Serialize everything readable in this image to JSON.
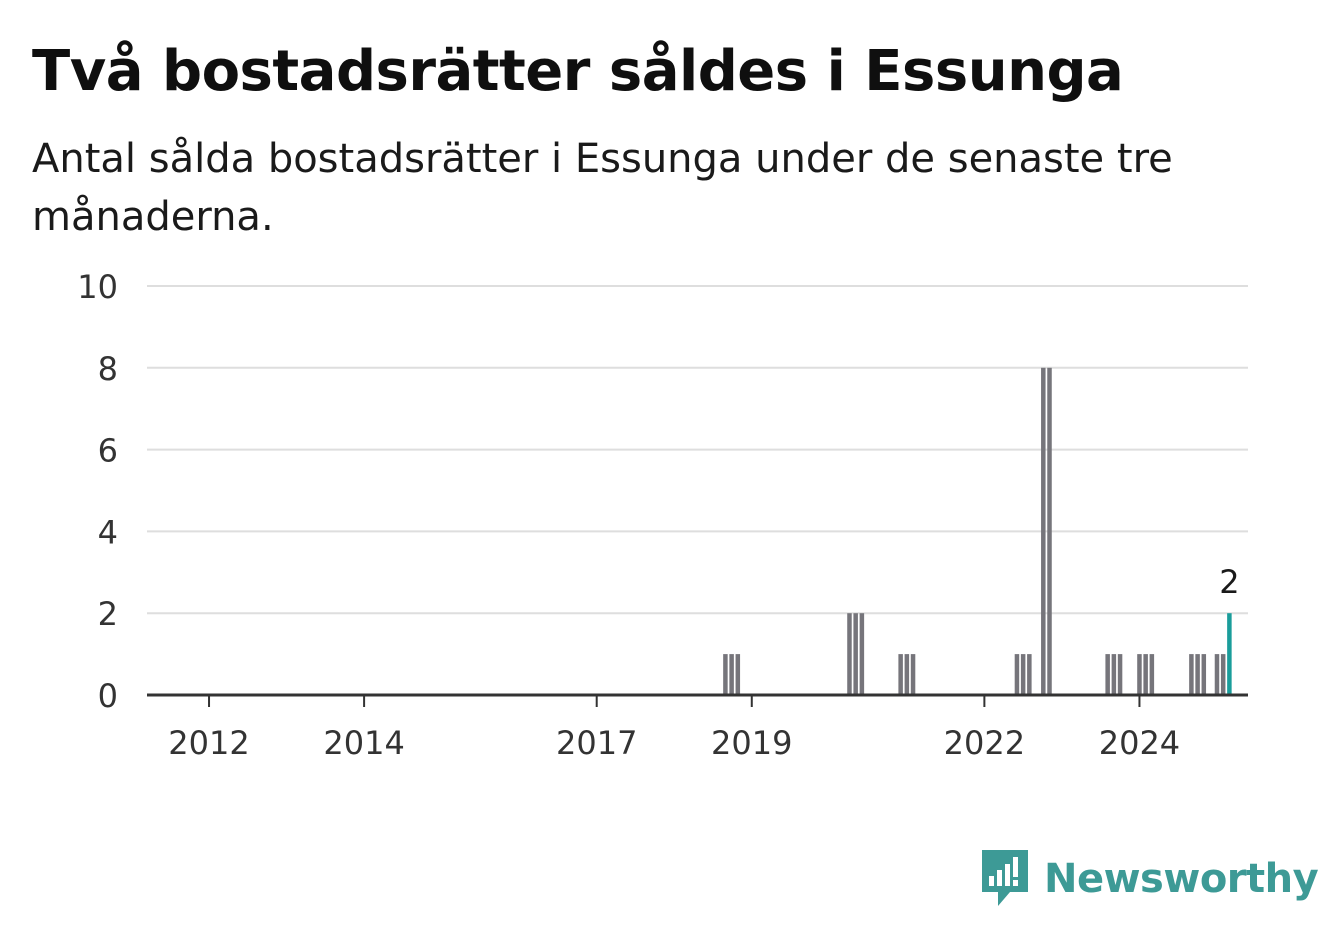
{
  "header": {
    "title": "Två bostadsrätter såldes i Essunga",
    "subtitle": "Antal sålda bostadsrätter i Essunga under de senaste tre månaderna."
  },
  "brand": {
    "name": "Newsworthy",
    "icon": "newsworthy-logo-icon",
    "color": "#3d9a96"
  },
  "chart_data": {
    "type": "bar",
    "ylim": [
      0,
      10
    ],
    "yticks": [
      0,
      2,
      4,
      6,
      8,
      10
    ],
    "xlim": [
      2011.2,
      2025.4
    ],
    "xticks": [
      2012,
      2014,
      2017,
      2019,
      2022,
      2024
    ],
    "grid": true,
    "bar_color": "#76757b",
    "highlight_color": "#1a9d9b",
    "points": [
      {
        "x": 2018.66,
        "y": 1
      },
      {
        "x": 2018.74,
        "y": 1
      },
      {
        "x": 2018.82,
        "y": 1
      },
      {
        "x": 2020.26,
        "y": 2
      },
      {
        "x": 2020.34,
        "y": 2
      },
      {
        "x": 2020.42,
        "y": 2
      },
      {
        "x": 2020.92,
        "y": 1
      },
      {
        "x": 2021.0,
        "y": 1
      },
      {
        "x": 2021.08,
        "y": 1
      },
      {
        "x": 2022.42,
        "y": 1
      },
      {
        "x": 2022.5,
        "y": 1
      },
      {
        "x": 2022.58,
        "y": 1
      },
      {
        "x": 2022.76,
        "y": 8
      },
      {
        "x": 2022.84,
        "y": 8
      },
      {
        "x": 2023.59,
        "y": 1
      },
      {
        "x": 2023.67,
        "y": 1
      },
      {
        "x": 2023.75,
        "y": 1
      },
      {
        "x": 2024.0,
        "y": 1
      },
      {
        "x": 2024.08,
        "y": 1
      },
      {
        "x": 2024.16,
        "y": 1
      },
      {
        "x": 2024.67,
        "y": 1
      },
      {
        "x": 2024.75,
        "y": 1
      },
      {
        "x": 2024.83,
        "y": 1
      },
      {
        "x": 2025.0,
        "y": 1
      },
      {
        "x": 2025.08,
        "y": 1
      },
      {
        "x": 2025.16,
        "y": 2,
        "highlight": true,
        "label": "2"
      }
    ]
  }
}
